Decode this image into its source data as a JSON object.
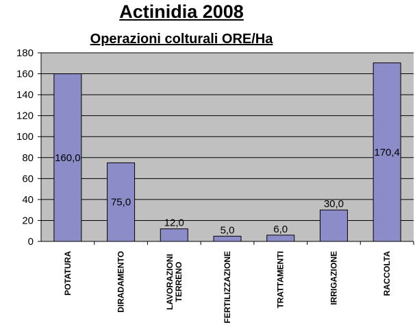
{
  "chart_data": {
    "type": "bar",
    "title": "Actinidia 2008",
    "subtitle": "Operazioni colturali ORE/Ha",
    "categories": [
      [
        "POTATURA"
      ],
      [
        "DIRADAMENTO"
      ],
      [
        "LAVORAZIONI",
        "TERRENO"
      ],
      [
        "FERTILIZZAZIONE"
      ],
      [
        "TRATTAMENTI"
      ],
      [
        "IRRIGAZIONE"
      ],
      [
        "RACCOLTA"
      ]
    ],
    "values": [
      160.0,
      75.0,
      12.0,
      5.0,
      6.0,
      30.0,
      170.4
    ],
    "data_labels": [
      "160,0",
      "75,0",
      "12,0",
      "5,0",
      "6,0",
      "30,0",
      "170,4"
    ],
    "yticks": [
      "0",
      "20",
      "40",
      "60",
      "80",
      "100",
      "120",
      "140",
      "160",
      "180"
    ],
    "ylim": [
      0,
      180
    ],
    "grid": true,
    "legend": "none",
    "colors": {
      "plot_bg": "#c0c0c0",
      "bar_fill": "#8c8cc8",
      "bar_stroke": "#000000"
    }
  }
}
